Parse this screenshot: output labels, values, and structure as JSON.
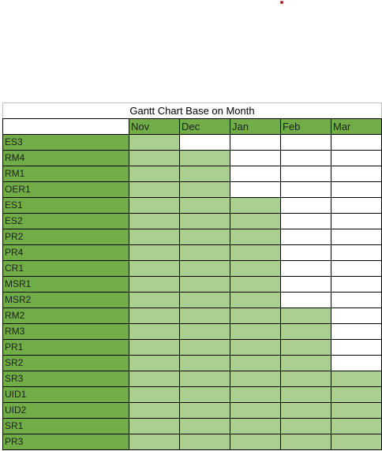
{
  "chart_data": {
    "type": "table",
    "title": "Gantt Chart Base on Month",
    "months": [
      "Nov",
      "Dec",
      "Jan",
      "Feb",
      "Mar"
    ],
    "tasks": [
      {
        "name": "ES3",
        "start": "Nov",
        "end": "Nov"
      },
      {
        "name": "RM4",
        "start": "Nov",
        "end": "Dec"
      },
      {
        "name": "RM1",
        "start": "Nov",
        "end": "Dec"
      },
      {
        "name": "OER1",
        "start": "Nov",
        "end": "Dec"
      },
      {
        "name": "ES1",
        "start": "Nov",
        "end": "Jan"
      },
      {
        "name": "ES2",
        "start": "Nov",
        "end": "Jan"
      },
      {
        "name": "PR2",
        "start": "Nov",
        "end": "Jan"
      },
      {
        "name": "PR4",
        "start": "Nov",
        "end": "Jan"
      },
      {
        "name": "CR1",
        "start": "Nov",
        "end": "Jan"
      },
      {
        "name": "MSR1",
        "start": "Nov",
        "end": "Jan"
      },
      {
        "name": "MSR2",
        "start": "Nov",
        "end": "Jan"
      },
      {
        "name": "RM2",
        "start": "Nov",
        "end": "Feb"
      },
      {
        "name": "RM3",
        "start": "Nov",
        "end": "Feb"
      },
      {
        "name": "PR1",
        "start": "Nov",
        "end": "Feb"
      },
      {
        "name": "SR2",
        "start": "Nov",
        "end": "Feb"
      },
      {
        "name": "SR3",
        "start": "Nov",
        "end": "Mar"
      },
      {
        "name": "UID1",
        "start": "Nov",
        "end": "Mar"
      },
      {
        "name": "UID2",
        "start": "Nov",
        "end": "Mar"
      },
      {
        "name": "SR1",
        "start": "Nov",
        "end": "Mar"
      },
      {
        "name": "PR3",
        "start": "Nov",
        "end": "Mar"
      }
    ],
    "colors": {
      "task_fill": "#70ad47",
      "bar_fill": "#a9d08e",
      "empty_fill": "#ffffff"
    }
  }
}
